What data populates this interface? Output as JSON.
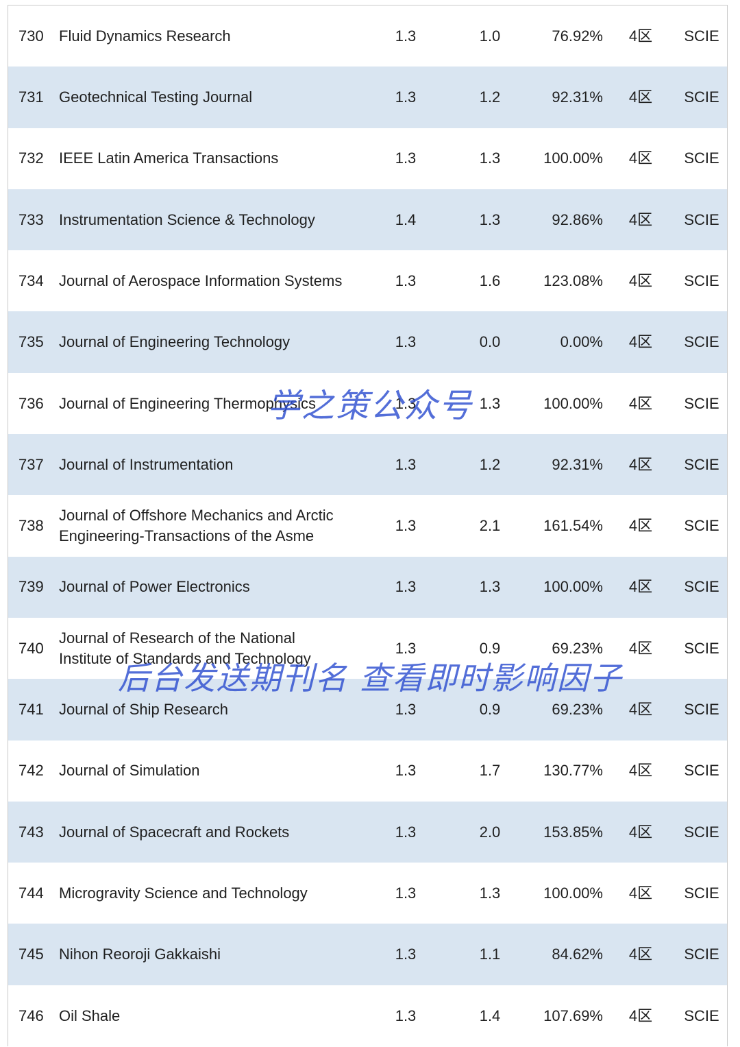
{
  "table": {
    "rows": [
      {
        "rank": "730",
        "name": "Fluid Dynamics Research",
        "v1": "1.3",
        "v2": "1.0",
        "pct": "76.92%",
        "zone": "4区",
        "idx": "SCIE"
      },
      {
        "rank": "731",
        "name": "Geotechnical Testing Journal",
        "v1": "1.3",
        "v2": "1.2",
        "pct": "92.31%",
        "zone": "4区",
        "idx": "SCIE"
      },
      {
        "rank": "732",
        "name": "IEEE Latin America Transactions",
        "v1": "1.3",
        "v2": "1.3",
        "pct": "100.00%",
        "zone": "4区",
        "idx": "SCIE"
      },
      {
        "rank": "733",
        "name": "Instrumentation Science & Technology",
        "v1": "1.4",
        "v2": "1.3",
        "pct": "92.86%",
        "zone": "4区",
        "idx": "SCIE"
      },
      {
        "rank": "734",
        "name": "Journal of Aerospace Information Systems",
        "v1": "1.3",
        "v2": "1.6",
        "pct": "123.08%",
        "zone": "4区",
        "idx": "SCIE"
      },
      {
        "rank": "735",
        "name": "Journal of Engineering Technology",
        "v1": "1.3",
        "v2": "0.0",
        "pct": "0.00%",
        "zone": "4区",
        "idx": "SCIE"
      },
      {
        "rank": "736",
        "name": "Journal of Engineering Thermophysics",
        "v1": "1.3",
        "v2": "1.3",
        "pct": "100.00%",
        "zone": "4区",
        "idx": "SCIE"
      },
      {
        "rank": "737",
        "name": "Journal of Instrumentation",
        "v1": "1.3",
        "v2": "1.2",
        "pct": "92.31%",
        "zone": "4区",
        "idx": "SCIE"
      },
      {
        "rank": "738",
        "name": "Journal of Offshore Mechanics and Arctic Engineering-Transactions of the Asme",
        "v1": "1.3",
        "v2": "2.1",
        "pct": "161.54%",
        "zone": "4区",
        "idx": "SCIE"
      },
      {
        "rank": "739",
        "name": "Journal of Power Electronics",
        "v1": "1.3",
        "v2": "1.3",
        "pct": "100.00%",
        "zone": "4区",
        "idx": "SCIE"
      },
      {
        "rank": "740",
        "name": "Journal of Research of the National Institute of Standards and Technology",
        "v1": "1.3",
        "v2": "0.9",
        "pct": "69.23%",
        "zone": "4区",
        "idx": "SCIE"
      },
      {
        "rank": "741",
        "name": "Journal of Ship Research",
        "v1": "1.3",
        "v2": "0.9",
        "pct": "69.23%",
        "zone": "4区",
        "idx": "SCIE"
      },
      {
        "rank": "742",
        "name": "Journal of Simulation",
        "v1": "1.3",
        "v2": "1.7",
        "pct": "130.77%",
        "zone": "4区",
        "idx": "SCIE"
      },
      {
        "rank": "743",
        "name": "Journal of Spacecraft and Rockets",
        "v1": "1.3",
        "v2": "2.0",
        "pct": "153.85%",
        "zone": "4区",
        "idx": "SCIE"
      },
      {
        "rank": "744",
        "name": "Microgravity Science and Technology",
        "v1": "1.3",
        "v2": "1.3",
        "pct": "100.00%",
        "zone": "4区",
        "idx": "SCIE"
      },
      {
        "rank": "745",
        "name": "Nihon Reoroji Gakkaishi",
        "v1": "1.3",
        "v2": "1.1",
        "pct": "84.62%",
        "zone": "4区",
        "idx": "SCIE"
      },
      {
        "rank": "746",
        "name": "Oil Shale",
        "v1": "1.3",
        "v2": "1.4",
        "pct": "107.69%",
        "zone": "4区",
        "idx": "SCIE"
      }
    ]
  },
  "watermarks": {
    "center": "学之策公众号",
    "lower": "后台发送期刊名 查看即时影响因子"
  },
  "colors": {
    "row_alt": "#d9e5f1",
    "watermark": "#2e4fd0"
  }
}
